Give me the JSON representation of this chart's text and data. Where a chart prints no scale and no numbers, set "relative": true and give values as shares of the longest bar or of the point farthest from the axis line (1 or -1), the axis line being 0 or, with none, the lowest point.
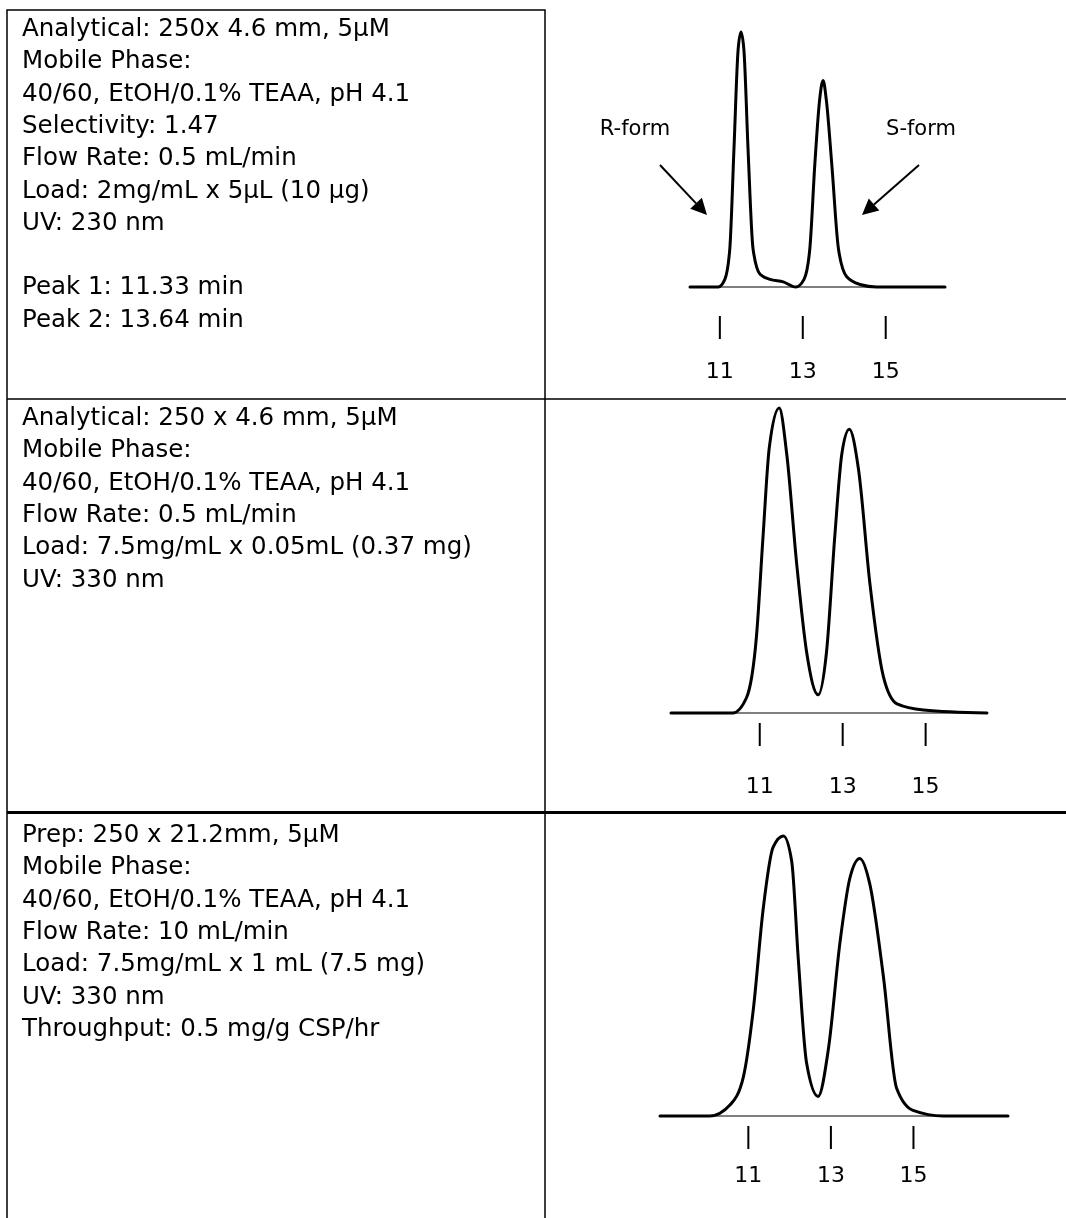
{
  "chart_data": [
    {
      "type": "other",
      "annotations": [
        "Analytical: 250x 4.6 mm, 5µM",
        "Mobile Phase:",
        "40/60, EtOH/0.1% TEAA, pH 4.1",
        "Selectivity: 1.47",
        "Flow Rate: 0.5 mL/min",
        "Load: 2mg/mL x 5µL (10 µg)",
        "UV: 230 nm",
        "Peak 1: 11.33 min",
        "Peak 2: 13.64 min"
      ]
    },
    {
      "type": "line",
      "relative": true,
      "xlim": [
        10.28,
        16.43
      ],
      "xticks": [
        11,
        13,
        15
      ],
      "x": [
        10.28,
        10.96,
        11.12,
        11.24,
        11.34,
        11.44,
        11.51,
        11.58,
        11.68,
        11.8,
        11.97,
        12.21,
        12.53,
        12.83,
        13.03,
        13.17,
        13.29,
        13.41,
        13.49,
        13.57,
        13.7,
        13.86,
        14.06,
        14.38,
        14.78,
        16.43
      ],
      "series": [
        {
          "color": "#000000",
          "values": [
            0,
            0,
            0.03,
            0.15,
            0.54,
            0.93,
            1,
            0.93,
            0.54,
            0.15,
            0.05,
            0.03,
            0.02,
            0,
            0.03,
            0.15,
            0.48,
            0.74,
            0.81,
            0.73,
            0.48,
            0.15,
            0.04,
            0.01,
            0,
            0
          ]
        }
      ],
      "annotations": [
        "R-form",
        "S-form"
      ]
    },
    {
      "type": "other",
      "annotations": [
        "Analytical: 250 x 4.6 mm, 5µM",
        "Mobile Phase:",
        "40/60, EtOH/0.1% TEAA, pH 4.1",
        "Flow Rate: 0.5 mL/min",
        "Load: 7.5mg/mL x 0.05mL (0.37 mg)",
        "UV: 330 nm"
      ]
    },
    {
      "type": "line",
      "relative": true,
      "xlim": [
        8.86,
        16.48
      ],
      "xticks": [
        11,
        13,
        15
      ],
      "x": [
        8.86,
        10.35,
        10.68,
        10.92,
        11.08,
        11.23,
        11.47,
        11.65,
        11.89,
        12.13,
        12.41,
        12.61,
        12.81,
        12.98,
        13.16,
        13.38,
        13.66,
        13.98,
        14.31,
        14.95,
        16.48
      ],
      "series": [
        {
          "color": "#000000",
          "values": [
            0,
            0,
            0.05,
            0.25,
            0.58,
            0.87,
            1,
            0.85,
            0.49,
            0.2,
            0.06,
            0.2,
            0.58,
            0.85,
            0.93,
            0.8,
            0.42,
            0.12,
            0.03,
            0.01,
            0
          ]
        }
      ]
    },
    {
      "type": "other",
      "annotations": [
        "Prep: 250 x 21.2mm, 5µM",
        "Mobile Phase:",
        "40/60, EtOH/0.1% TEAA, pH 4.1",
        "Flow Rate: 10 mL/min",
        "Load: 7.5mg/mL x 1 mL (7.5 mg)",
        "UV: 330 nm",
        "Throughput:  0.5 mg/g CSP/hr"
      ]
    },
    {
      "type": "line",
      "relative": true,
      "xlim": [
        8.86,
        17.29
      ],
      "xticks": [
        11,
        13,
        15
      ],
      "x": [
        8.86,
        10.07,
        10.56,
        10.88,
        11.12,
        11.36,
        11.6,
        11.85,
        12.05,
        12.21,
        12.41,
        12.69,
        12.94,
        13.22,
        13.46,
        13.7,
        13.94,
        14.27,
        14.59,
        14.99,
        15.72,
        17.29
      ],
      "series": [
        {
          "color": "#000000",
          "values": [
            0,
            0,
            0.04,
            0.14,
            0.38,
            0.74,
            0.96,
            1,
            0.91,
            0.56,
            0.19,
            0.07,
            0.24,
            0.62,
            0.85,
            0.92,
            0.83,
            0.5,
            0.1,
            0.02,
            0,
            0
          ]
        }
      ]
    }
  ]
}
